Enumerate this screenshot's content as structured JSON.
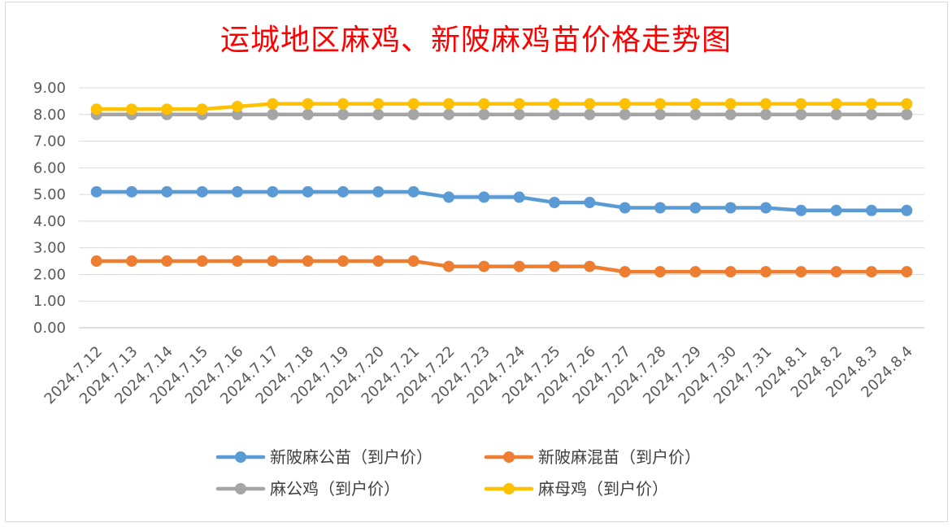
{
  "chart_data": {
    "type": "line",
    "title": "运城地区麻鸡、新陂麻鸡苗价格走势图",
    "categories": [
      "2024.7.12",
      "2024.7.13",
      "2024.7.14",
      "2024.7.15",
      "2024.7.16",
      "2024.7.17",
      "2024.7.18",
      "2024.7.19",
      "2024.7.20",
      "2024.7.21",
      "2024.7.22",
      "2024.7.23",
      "2024.7.24",
      "2024.7.25",
      "2024.7.26",
      "2024.7.27",
      "2024.7.28",
      "2024.7.29",
      "2024.7.30",
      "2024.7.31",
      "2024.8.1",
      "2024.8.2",
      "2024.8.3",
      "2024.8.4"
    ],
    "y_ticks": [
      "0.00",
      "1.00",
      "2.00",
      "3.00",
      "4.00",
      "5.00",
      "6.00",
      "7.00",
      "8.00",
      "9.00"
    ],
    "ylim": [
      0,
      9
    ],
    "grid": true,
    "legend_position": "bottom",
    "series": [
      {
        "name": "新陂麻公苗（到户价）",
        "color": "#5b9bd5",
        "values": [
          5.1,
          5.1,
          5.1,
          5.1,
          5.1,
          5.1,
          5.1,
          5.1,
          5.1,
          5.1,
          4.9,
          4.9,
          4.9,
          4.7,
          4.7,
          4.5,
          4.5,
          4.5,
          4.5,
          4.5,
          4.4,
          4.4,
          4.4,
          4.4
        ]
      },
      {
        "name": "新陂麻混苗（到户价）",
        "color": "#ed7d31",
        "values": [
          2.5,
          2.5,
          2.5,
          2.5,
          2.5,
          2.5,
          2.5,
          2.5,
          2.5,
          2.5,
          2.3,
          2.3,
          2.3,
          2.3,
          2.3,
          2.1,
          2.1,
          2.1,
          2.1,
          2.1,
          2.1,
          2.1,
          2.1,
          2.1
        ]
      },
      {
        "name": "麻公鸡（到户价）",
        "color": "#a5a5a5",
        "values": [
          8.0,
          8.0,
          8.0,
          8.0,
          8.0,
          8.0,
          8.0,
          8.0,
          8.0,
          8.0,
          8.0,
          8.0,
          8.0,
          8.0,
          8.0,
          8.0,
          8.0,
          8.0,
          8.0,
          8.0,
          8.0,
          8.0,
          8.0,
          8.0
        ]
      },
      {
        "name": "麻母鸡（到户价）",
        "color": "#ffc000",
        "values": [
          8.2,
          8.2,
          8.2,
          8.2,
          8.3,
          8.4,
          8.4,
          8.4,
          8.4,
          8.4,
          8.4,
          8.4,
          8.4,
          8.4,
          8.4,
          8.4,
          8.4,
          8.4,
          8.4,
          8.4,
          8.4,
          8.4,
          8.4,
          8.4
        ]
      }
    ]
  }
}
